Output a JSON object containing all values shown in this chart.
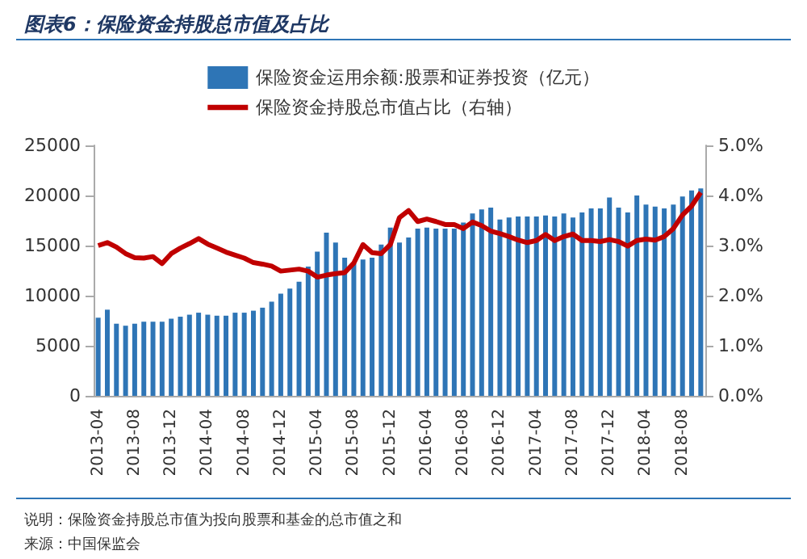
{
  "chart_data": {
    "type": "bar",
    "title": "图表6：保险资金持股总市值及占比",
    "categories": [
      "2013-04",
      null,
      null,
      null,
      "2013-08",
      null,
      null,
      null,
      "2013-12",
      null,
      null,
      null,
      "2014-04",
      null,
      null,
      null,
      "2014-08",
      null,
      null,
      null,
      "2014-12",
      null,
      null,
      null,
      "2015-04",
      null,
      null,
      null,
      "2015-08",
      null,
      null,
      null,
      "2015-12",
      null,
      null,
      null,
      "2016-04",
      null,
      null,
      null,
      "2016-08",
      null,
      null,
      null,
      "2016-12",
      null,
      null,
      null,
      "2017-04",
      null,
      null,
      null,
      "2017-08",
      null,
      null,
      null,
      "2017-12",
      null,
      null,
      null,
      "2018-04",
      null,
      null,
      null,
      "2018-08",
      null,
      null
    ],
    "series": [
      {
        "name": "保险资金运用余额:股票和证券投资（亿元）",
        "color": "#2e75b6",
        "values": [
          7800,
          8600,
          7200,
          7000,
          7200,
          7400,
          7400,
          7400,
          7700,
          7900,
          8100,
          8300,
          8100,
          8000,
          8000,
          8300,
          8300,
          8500,
          8800,
          9400,
          10200,
          10700,
          11400,
          12900,
          14400,
          16300,
          15300,
          13800,
          13200,
          13600,
          13800,
          15100,
          16800,
          15300,
          15800,
          16700,
          16800,
          16700,
          16700,
          16700,
          17300,
          18200,
          18600,
          18800,
          17600,
          17800,
          17900,
          17900,
          17900,
          18000,
          17900,
          18200,
          17800,
          18300,
          18700,
          18700,
          19800,
          18800,
          18300,
          20000,
          19100,
          18900,
          18700,
          19100,
          19900,
          20500,
          20700
        ]
      },
      {
        "name": "保险资金持股总市值占比（右轴）",
        "type": "line",
        "axis": "y2",
        "color": "#c00000",
        "marker": "none",
        "values": [
          3.0,
          3.06,
          2.97,
          2.84,
          2.76,
          2.75,
          2.78,
          2.64,
          2.84,
          2.95,
          3.04,
          3.14,
          3.03,
          2.95,
          2.87,
          2.81,
          2.75,
          2.66,
          2.63,
          2.59,
          2.49,
          2.51,
          2.53,
          2.49,
          2.37,
          2.41,
          2.44,
          2.46,
          2.65,
          3.02,
          2.86,
          2.84,
          3.02,
          3.56,
          3.7,
          3.48,
          3.53,
          3.48,
          3.42,
          3.42,
          3.34,
          3.47,
          3.4,
          3.29,
          3.24,
          3.18,
          3.11,
          3.06,
          3.1,
          3.22,
          3.1,
          3.18,
          3.23,
          3.1,
          3.1,
          3.08,
          3.12,
          3.08,
          2.99,
          3.1,
          3.13,
          3.11,
          3.18,
          3.34,
          3.61,
          3.79,
          4.06
        ]
      }
    ],
    "ylim": [
      0,
      25000
    ],
    "yticks": [
      0,
      5000,
      10000,
      15000,
      20000,
      25000
    ],
    "y2lim": [
      0,
      5
    ],
    "y2ticks": [
      {
        "value": 0,
        "label": "0.0%"
      },
      {
        "value": 1,
        "label": "1.0%"
      },
      {
        "value": 2,
        "label": "2.0%"
      },
      {
        "value": 3,
        "label": "3.0%"
      },
      {
        "value": 4,
        "label": "4.0%"
      },
      {
        "value": 5,
        "label": "5.0%"
      }
    ],
    "grid": false,
    "legend": "top",
    "annotations": [
      "说明：保险资金持股总市值为投向股票和基金的总市值之和",
      "来源：中国保监会"
    ]
  }
}
